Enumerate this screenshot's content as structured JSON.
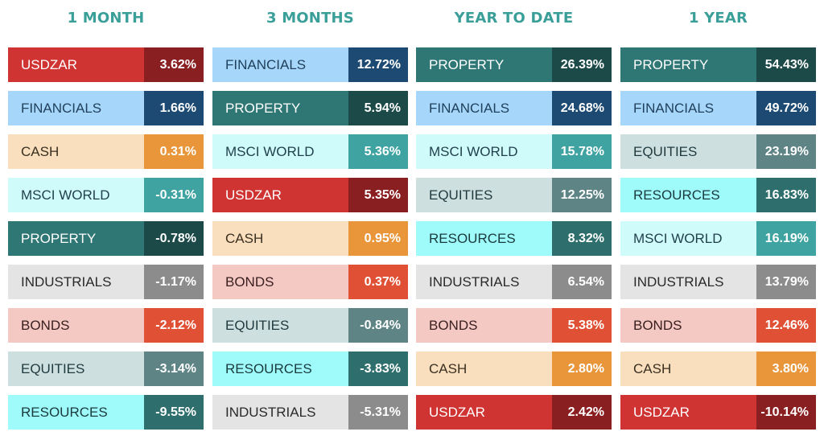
{
  "chart_data": {
    "type": "table",
    "columns": [
      {
        "title": "1 MONTH",
        "rows": [
          {
            "name": "USDZAR",
            "value": "3.62%"
          },
          {
            "name": "FINANCIALS",
            "value": "1.66%"
          },
          {
            "name": "CASH",
            "value": "0.31%"
          },
          {
            "name": "MSCI WORLD",
            "value": "-0.31%"
          },
          {
            "name": "PROPERTY",
            "value": "-0.78%"
          },
          {
            "name": "INDUSTRIALS",
            "value": "-1.17%"
          },
          {
            "name": "BONDS",
            "value": "-2.12%"
          },
          {
            "name": "EQUITIES",
            "value": "-3.14%"
          },
          {
            "name": "RESOURCES",
            "value": "-9.55%"
          }
        ]
      },
      {
        "title": "3 MONTHS",
        "rows": [
          {
            "name": "FINANCIALS",
            "value": "12.72%"
          },
          {
            "name": "PROPERTY",
            "value": "5.94%"
          },
          {
            "name": "MSCI WORLD",
            "value": "5.36%"
          },
          {
            "name": "USDZAR",
            "value": "5.35%"
          },
          {
            "name": "CASH",
            "value": "0.95%"
          },
          {
            "name": "BONDS",
            "value": "0.37%"
          },
          {
            "name": "EQUITIES",
            "value": "-0.84%"
          },
          {
            "name": "RESOURCES",
            "value": "-3.83%"
          },
          {
            "name": "INDUSTRIALS",
            "value": "-5.31%"
          }
        ]
      },
      {
        "title": "YEAR TO DATE",
        "rows": [
          {
            "name": "PROPERTY",
            "value": "26.39%"
          },
          {
            "name": "FINANCIALS",
            "value": "24.68%"
          },
          {
            "name": "MSCI WORLD",
            "value": "15.78%"
          },
          {
            "name": "EQUITIES",
            "value": "12.25%"
          },
          {
            "name": "RESOURCES",
            "value": "8.32%"
          },
          {
            "name": "INDUSTRIALS",
            "value": "6.54%"
          },
          {
            "name": "BONDS",
            "value": "5.38%"
          },
          {
            "name": "CASH",
            "value": "2.80%"
          },
          {
            "name": "USDZAR",
            "value": "2.42%"
          }
        ]
      },
      {
        "title": "1 YEAR",
        "rows": [
          {
            "name": "PROPERTY",
            "value": "54.43%"
          },
          {
            "name": "FINANCIALS",
            "value": "49.72%"
          },
          {
            "name": "EQUITIES",
            "value": "23.19%"
          },
          {
            "name": "RESOURCES",
            "value": "16.83%"
          },
          {
            "name": "MSCI WORLD",
            "value": "16.19%"
          },
          {
            "name": "INDUSTRIALS",
            "value": "13.79%"
          },
          {
            "name": "BONDS",
            "value": "12.46%"
          },
          {
            "name": "CASH",
            "value": "3.80%"
          },
          {
            "name": "USDZAR",
            "value": "-10.14%"
          }
        ]
      }
    ]
  },
  "colors": {
    "title": "#3a9e99",
    "assets": {
      "USDZAR": {
        "label_bg": "#cf3332",
        "label_fg": "#ffffff",
        "value_bg": "#8a1f22"
      },
      "FINANCIALS": {
        "label_bg": "#a6d7fb",
        "label_fg": "#1f3f5a",
        "value_bg": "#1c4a72"
      },
      "CASH": {
        "label_bg": "#f9dfbe",
        "label_fg": "#3a2f20",
        "value_bg": "#e89639"
      },
      "MSCI WORLD": {
        "label_bg": "#cffbfb",
        "label_fg": "#1f3f4a",
        "value_bg": "#3fa3a2"
      },
      "PROPERTY": {
        "label_bg": "#2f7775",
        "label_fg": "#ffffff",
        "value_bg": "#1c4a48"
      },
      "INDUSTRIALS": {
        "label_bg": "#e4e4e4",
        "label_fg": "#2a2a2a",
        "value_bg": "#8c8c8c"
      },
      "BONDS": {
        "label_bg": "#f4c8c3",
        "label_fg": "#3a2020",
        "value_bg": "#e05034"
      },
      "EQUITIES": {
        "label_bg": "#cedfe0",
        "label_fg": "#1f3a3e",
        "value_bg": "#5f8485"
      },
      "RESOURCES": {
        "label_bg": "#9efbf9",
        "label_fg": "#1a3a3e",
        "value_bg": "#2e6f6d"
      }
    }
  }
}
